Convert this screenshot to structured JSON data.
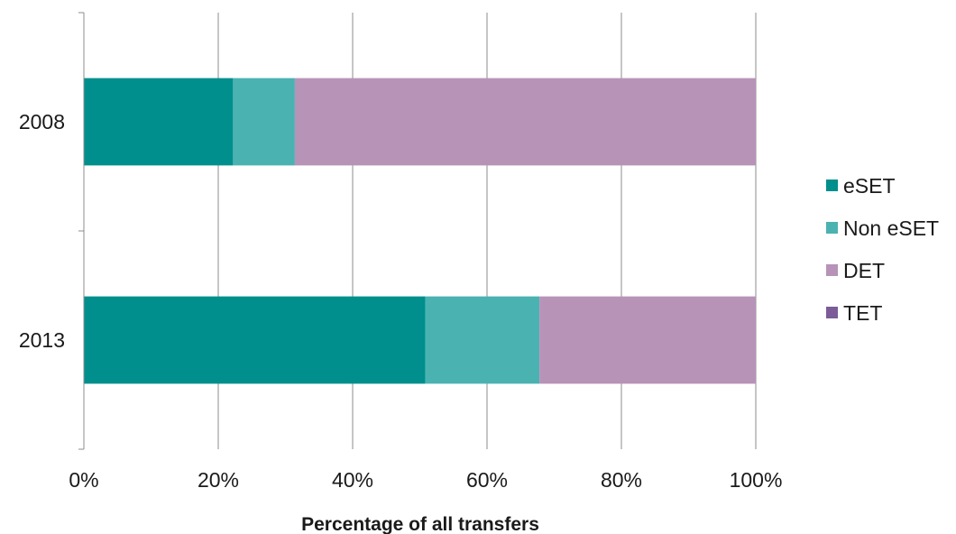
{
  "chart_data": {
    "type": "bar",
    "orientation": "horizontal",
    "stacked": true,
    "title": "",
    "xlabel": "Percentage of all transfers",
    "ylabel": "",
    "xlim": [
      0,
      100
    ],
    "x_ticks": [
      "0%",
      "20%",
      "40%",
      "60%",
      "80%",
      "100%"
    ],
    "grid": true,
    "legend_position": "right",
    "categories": [
      "2008",
      "2013"
    ],
    "series": [
      {
        "name": "eSET",
        "color": "#008f8c",
        "values": [
          22.2,
          50.8
        ]
      },
      {
        "name": "Non eSET",
        "color": "#4bb2b2",
        "values": [
          9.2,
          17.0
        ]
      },
      {
        "name": "DET",
        "color": "#b793b8",
        "values": [
          68.6,
          32.2
        ]
      },
      {
        "name": "TET",
        "color": "#7b5c98",
        "values": [
          0,
          0
        ]
      }
    ]
  }
}
